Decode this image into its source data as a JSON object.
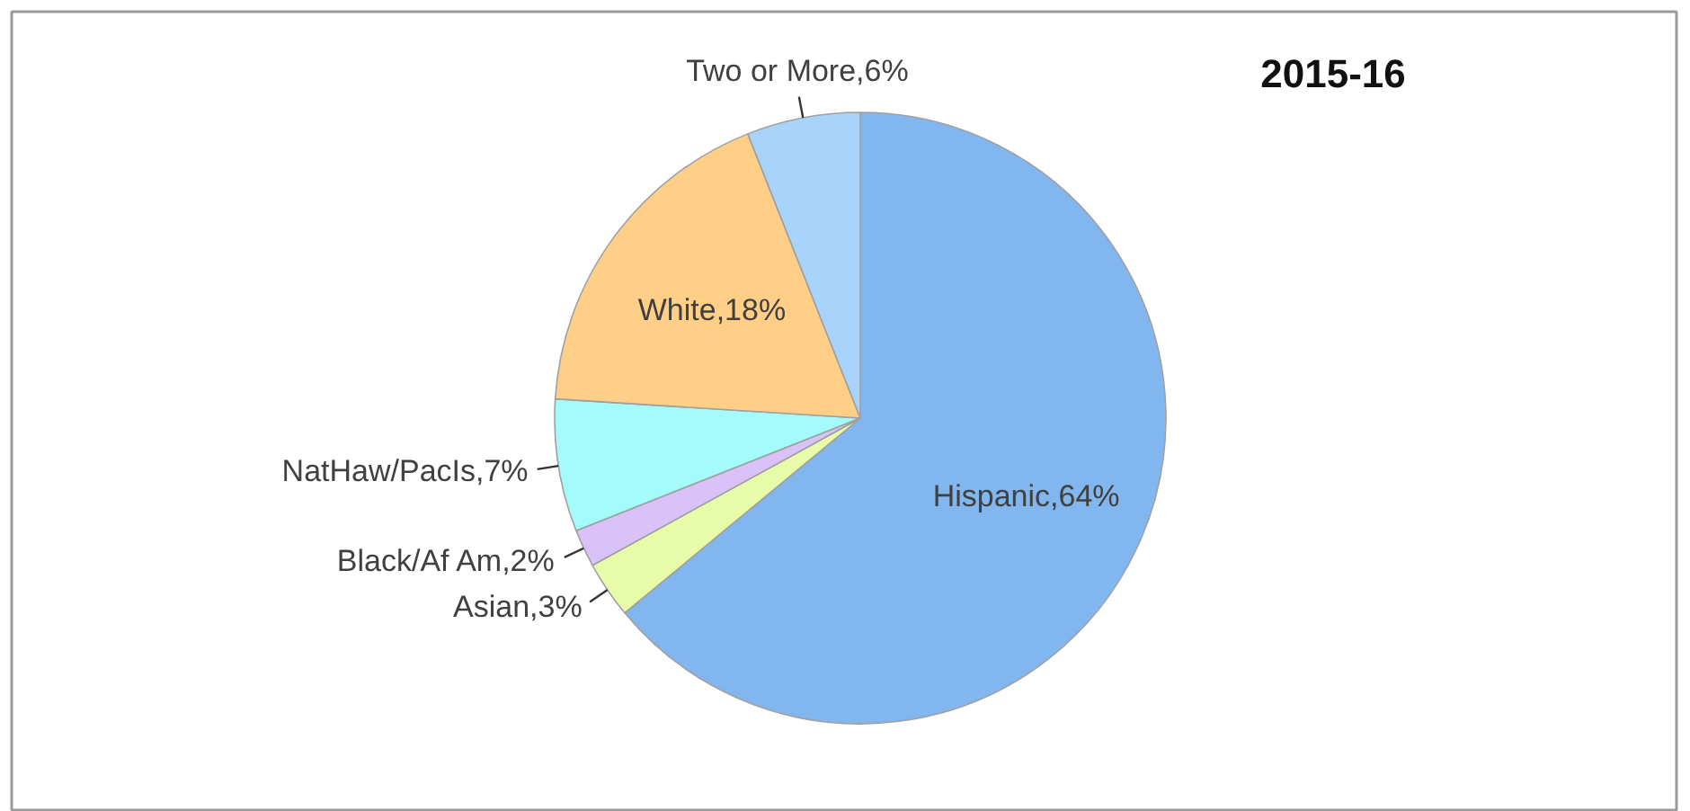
{
  "chart_data": {
    "type": "pie",
    "title": "2015-16",
    "categories": [
      "Hispanic",
      "Asian",
      "Black/Af Am",
      "NatHaw/PacIs",
      "White",
      "Two or More"
    ],
    "values": [
      64,
      3,
      2,
      7,
      18,
      6
    ],
    "colors": [
      "#82b6ee",
      "#e8fba8",
      "#d9c2f8",
      "#a4fbfb",
      "#ffcf88",
      "#a8d3fa"
    ],
    "value_labels": [
      "64%",
      "3%",
      "2%",
      "7%",
      "18%",
      "6%"
    ]
  }
}
